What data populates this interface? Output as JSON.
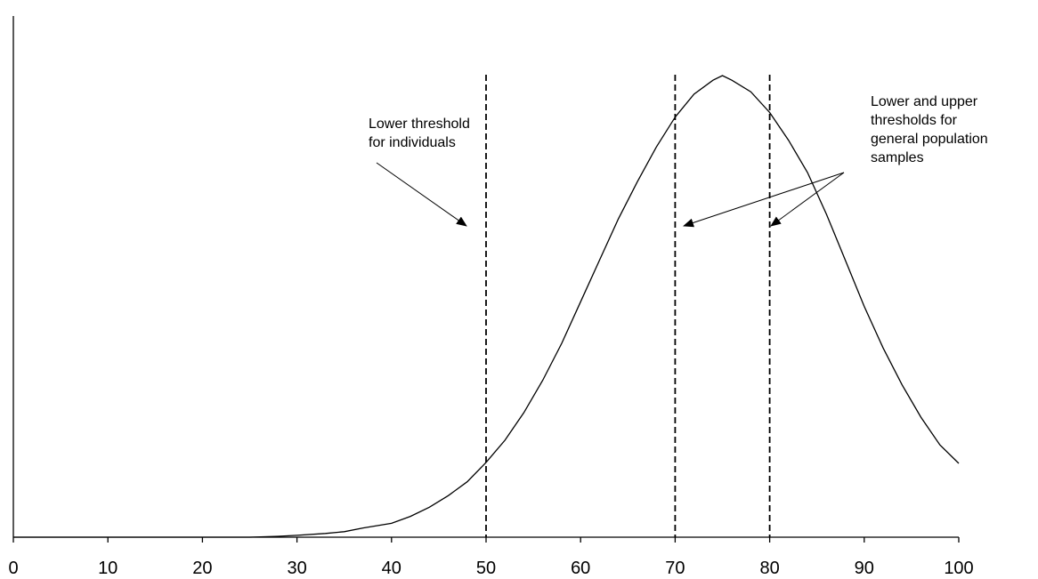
{
  "chart_data": {
    "type": "line",
    "xlim": [
      0,
      100
    ],
    "ylim": [
      0,
      1
    ],
    "x_ticks": [
      "0",
      "10",
      "20",
      "30",
      "40",
      "50",
      "60",
      "70",
      "80",
      "90",
      "100"
    ],
    "y_ticks": [],
    "grid": false,
    "series": [
      {
        "x": [
          0,
          5,
          10,
          15,
          20,
          25,
          28,
          30,
          33,
          35,
          37,
          40,
          42,
          44,
          46,
          48,
          50,
          52,
          54,
          56,
          58,
          60,
          62,
          64,
          66,
          68,
          70,
          72,
          74,
          75,
          76,
          78,
          80,
          82,
          84,
          86,
          88,
          90,
          92,
          94,
          96,
          98,
          100
        ],
        "y": [
          0.0,
          0.0,
          0.0,
          0.0,
          0.0,
          0.0,
          0.002,
          0.004,
          0.008,
          0.012,
          0.02,
          0.03,
          0.045,
          0.065,
          0.09,
          0.12,
          0.162,
          0.21,
          0.27,
          0.34,
          0.42,
          0.51,
          0.6,
          0.69,
          0.77,
          0.845,
          0.91,
          0.96,
          0.99,
          1.0,
          0.99,
          0.965,
          0.92,
          0.86,
          0.79,
          0.7,
          0.6,
          0.5,
          0.41,
          0.33,
          0.26,
          0.2,
          0.16
        ]
      }
    ],
    "thresholds": [
      50,
      70,
      80
    ],
    "annotations": [
      {
        "lines": [
          "Lower threshold",
          "for individuals"
        ],
        "targets": [
          50
        ]
      },
      {
        "lines": [
          "Lower and upper",
          "thresholds for",
          "general population",
          "samples"
        ],
        "targets": [
          70,
          80
        ]
      }
    ]
  }
}
